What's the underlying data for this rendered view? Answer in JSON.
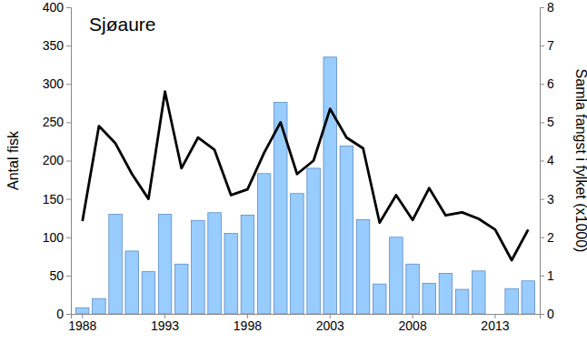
{
  "chart_data": {
    "type": "bar",
    "title": "Sjøaure",
    "y_label": "Antal fisk",
    "y2_label": "Samla fangst i fylket (x1000)",
    "categories": [
      "1988",
      null,
      null,
      null,
      null,
      "1993",
      null,
      null,
      null,
      null,
      "1998",
      null,
      null,
      null,
      null,
      "2003",
      null,
      null,
      null,
      null,
      "2008",
      null,
      null,
      null,
      null,
      "2013",
      null,
      null
    ],
    "series": [
      {
        "type": "bar",
        "color": "#99ccff",
        "values": [
          8,
          20,
          130,
          82,
          55,
          130,
          65,
          122,
          132,
          105,
          129,
          183,
          276,
          157,
          190,
          335,
          219,
          123,
          39,
          100,
          65,
          40,
          53,
          32,
          56,
          null,
          33,
          43
        ]
      },
      {
        "type": "line",
        "color": "#000000",
        "axis": "y2",
        "values": [
          2.42,
          4.9,
          4.45,
          3.65,
          3.0,
          5.8,
          3.8,
          4.6,
          4.28,
          3.1,
          3.25,
          4.2,
          5.0,
          3.65,
          4.0,
          5.35,
          4.6,
          4.32,
          2.38,
          3.1,
          2.45,
          3.28,
          2.57,
          2.65,
          2.48,
          2.2,
          1.4,
          2.2
        ]
      }
    ],
    "ylim": [
      0,
      400
    ],
    "yticks": [
      0,
      50,
      100,
      150,
      200,
      250,
      300,
      350,
      400
    ],
    "y2lim": [
      0,
      8
    ],
    "y2ticks": [
      0,
      1,
      2,
      3,
      4,
      5,
      6,
      7,
      8
    ],
    "grid": false
  }
}
